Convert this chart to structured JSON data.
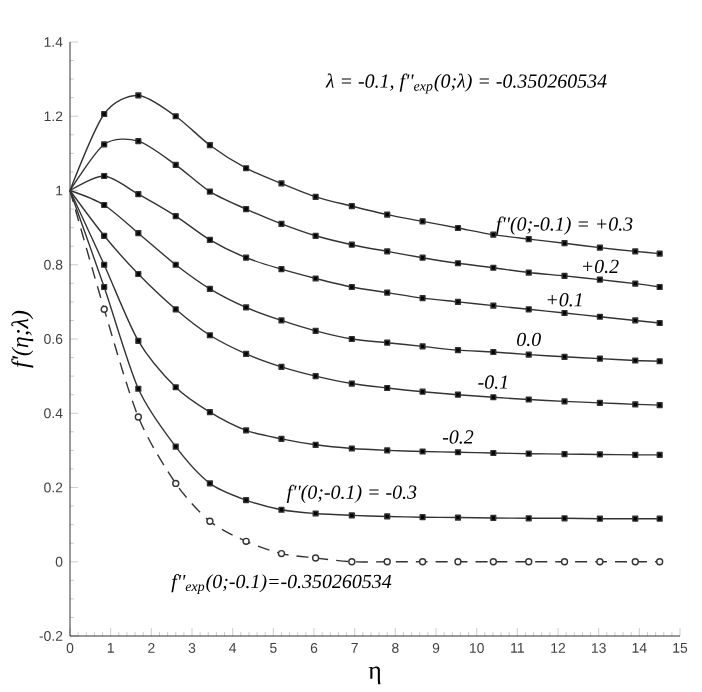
{
  "chart_data": {
    "type": "line",
    "xlabel": "η",
    "ylabel": "f'(η;λ)",
    "annotations": [
      "λ  =  -0.1,  f''$_{exp}$(0;λ) = -0.350260534"
    ],
    "x": [
      0,
      0.84,
      1.68,
      2.6,
      3.44,
      4.33,
      5.2,
      6.04,
      6.93,
      7.8,
      8.67,
      9.54,
      10.41,
      11.28,
      12.16,
      13.03,
      13.9,
      14.5
    ],
    "series": [
      {
        "name": "f''(0;-0.1) = +0.3",
        "color": "#333333",
        "values": [
          1,
          1.206,
          1.256,
          1.2,
          1.122,
          1.06,
          1.019,
          0.983,
          0.958,
          0.935,
          0.917,
          0.899,
          0.881,
          0.869,
          0.858,
          0.846,
          0.836,
          0.83
        ]
      },
      {
        "name": "+0.2",
        "color": "#333333",
        "values": [
          1,
          1.124,
          1.133,
          1.069,
          0.997,
          0.95,
          0.91,
          0.878,
          0.854,
          0.836,
          0.819,
          0.804,
          0.792,
          0.779,
          0.77,
          0.76,
          0.749,
          0.74
        ]
      },
      {
        "name": "+0.1",
        "color": "#333333",
        "values": [
          1,
          1.039,
          0.99,
          0.931,
          0.867,
          0.819,
          0.788,
          0.763,
          0.74,
          0.725,
          0.71,
          0.7,
          0.69,
          0.68,
          0.67,
          0.66,
          0.65,
          0.643
        ]
      },
      {
        "name": "0.0",
        "color": "#333333",
        "values": [
          1,
          0.961,
          0.885,
          0.8,
          0.735,
          0.685,
          0.65,
          0.622,
          0.6,
          0.59,
          0.58,
          0.57,
          0.565,
          0.558,
          0.552,
          0.547,
          0.542,
          0.54
        ]
      },
      {
        "name": "-0.1",
        "color": "#333333",
        "values": [
          1,
          0.878,
          0.775,
          0.68,
          0.61,
          0.56,
          0.525,
          0.5,
          0.48,
          0.468,
          0.458,
          0.45,
          0.443,
          0.437,
          0.432,
          0.428,
          0.424,
          0.422
        ]
      },
      {
        "name": "-0.2",
        "color": "#333333",
        "values": [
          1,
          0.8,
          0.595,
          0.47,
          0.403,
          0.354,
          0.331,
          0.315,
          0.305,
          0.3,
          0.297,
          0.295,
          0.293,
          0.291,
          0.29,
          0.289,
          0.288,
          0.288
        ]
      },
      {
        "name": "f''(0;-0.1) = -0.3",
        "color": "#333333",
        "values": [
          1,
          0.74,
          0.466,
          0.31,
          0.211,
          0.166,
          0.14,
          0.13,
          0.125,
          0.122,
          0.12,
          0.119,
          0.118,
          0.117,
          0.117,
          0.116,
          0.116,
          0.116
        ]
      },
      {
        "name": "f''$_{exp}$(0;-0.1)=-0.350260534",
        "color": "#333333",
        "marker": "circle",
        "line_style": "dashed",
        "values": [
          1,
          0.68,
          0.39,
          0.211,
          0.109,
          0.055,
          0.022,
          0.01,
          0,
          0,
          0,
          0,
          0,
          0,
          0,
          0,
          0,
          0
        ]
      }
    ],
    "xlim": [
      0,
      15
    ],
    "ylim": [
      -0.2,
      1.4
    ],
    "xticks": [
      0,
      1,
      2,
      3,
      4,
      5,
      6,
      7,
      8,
      9,
      10,
      11,
      12,
      13,
      14,
      15
    ],
    "yticks": [
      -0.2,
      0,
      0.2,
      0.4,
      0.6,
      0.8,
      1,
      1.2,
      1.4
    ],
    "marker": "square",
    "line_style": "solid",
    "grid": false,
    "legend": false
  }
}
